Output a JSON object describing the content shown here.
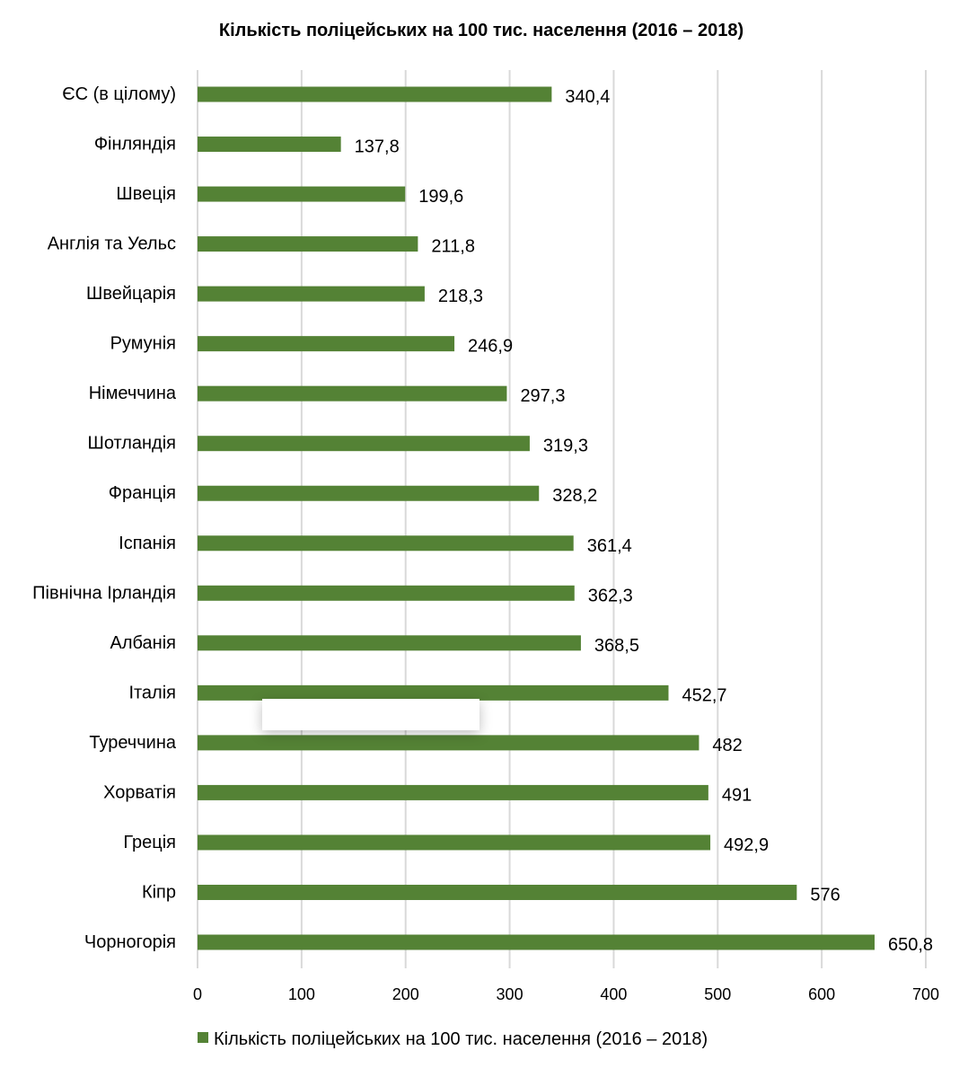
{
  "chart_data": {
    "type": "bar",
    "orientation": "horizontal",
    "title": "Кількість поліцейських на 100 тис. населення (2016 – 2018)",
    "categories": [
      "ЄС (в цілому)",
      "Фінляндія",
      "Швеція",
      "Англія та Уельс",
      "Швейцарія",
      "Румунія",
      "Німеччина",
      "Шотландія",
      "Франція",
      "Іспанія",
      "Північна Ірландія",
      "Албанія",
      "Італія",
      "Туреччина",
      "Хорватія",
      "Греція",
      "Кіпр",
      "Чорногорія"
    ],
    "values": [
      340.4,
      137.8,
      199.6,
      211.8,
      218.3,
      246.9,
      297.3,
      319.3,
      328.2,
      361.4,
      362.3,
      368.5,
      452.7,
      482,
      491,
      492.9,
      576,
      650.8
    ],
    "data_labels": [
      "340,4",
      "137,8",
      "199,6",
      "211,8",
      "218,3",
      "246,9",
      "297,3",
      "319,3",
      "328,2",
      "361,4",
      "362,3",
      "368,5",
      "452,7",
      "482",
      "491",
      "492,9",
      "576",
      "650,8"
    ],
    "xlim": [
      0,
      700
    ],
    "xticks": [
      "0",
      "100",
      "200",
      "300",
      "400",
      "500",
      "600",
      "700"
    ],
    "xlabel": "",
    "ylabel": "",
    "grid": true,
    "legend": {
      "position": "bottom",
      "entries": [
        "Кількість поліцейських на 100 тис. населення (2016 – 2018)"
      ]
    },
    "color": "#548235"
  }
}
